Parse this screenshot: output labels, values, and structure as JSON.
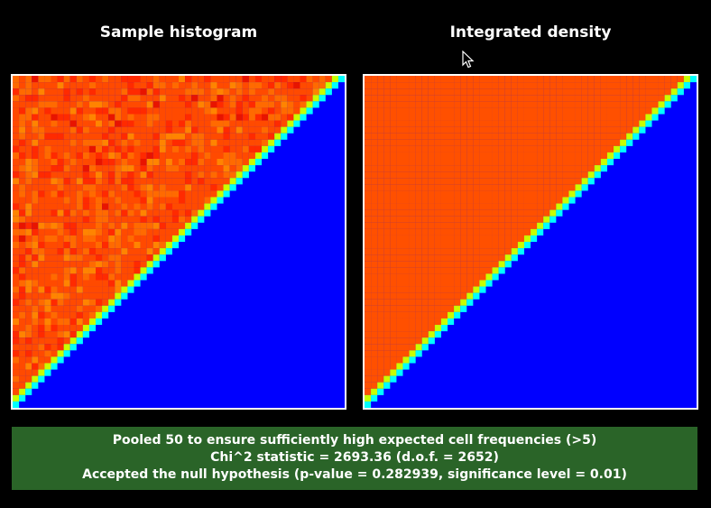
{
  "panels": {
    "left_title": "Sample histogram",
    "right_title": "Integrated density"
  },
  "status": {
    "line1": "Pooled 50 to ensure sufficiently high expected cell frequencies (>5)",
    "line2": "Chi^2 statistic = 2693.36 (d.o.f. = 2652)",
    "line3": "Accepted the null hypothesis (p-value = 0.282939, significance level = 0.01)"
  },
  "colors": {
    "background": "#000000",
    "zero_cell": "#0000ff",
    "density_fill": "#ff5000",
    "diagonal": "#00ffff",
    "status_bar": "#2a6428"
  }
}
